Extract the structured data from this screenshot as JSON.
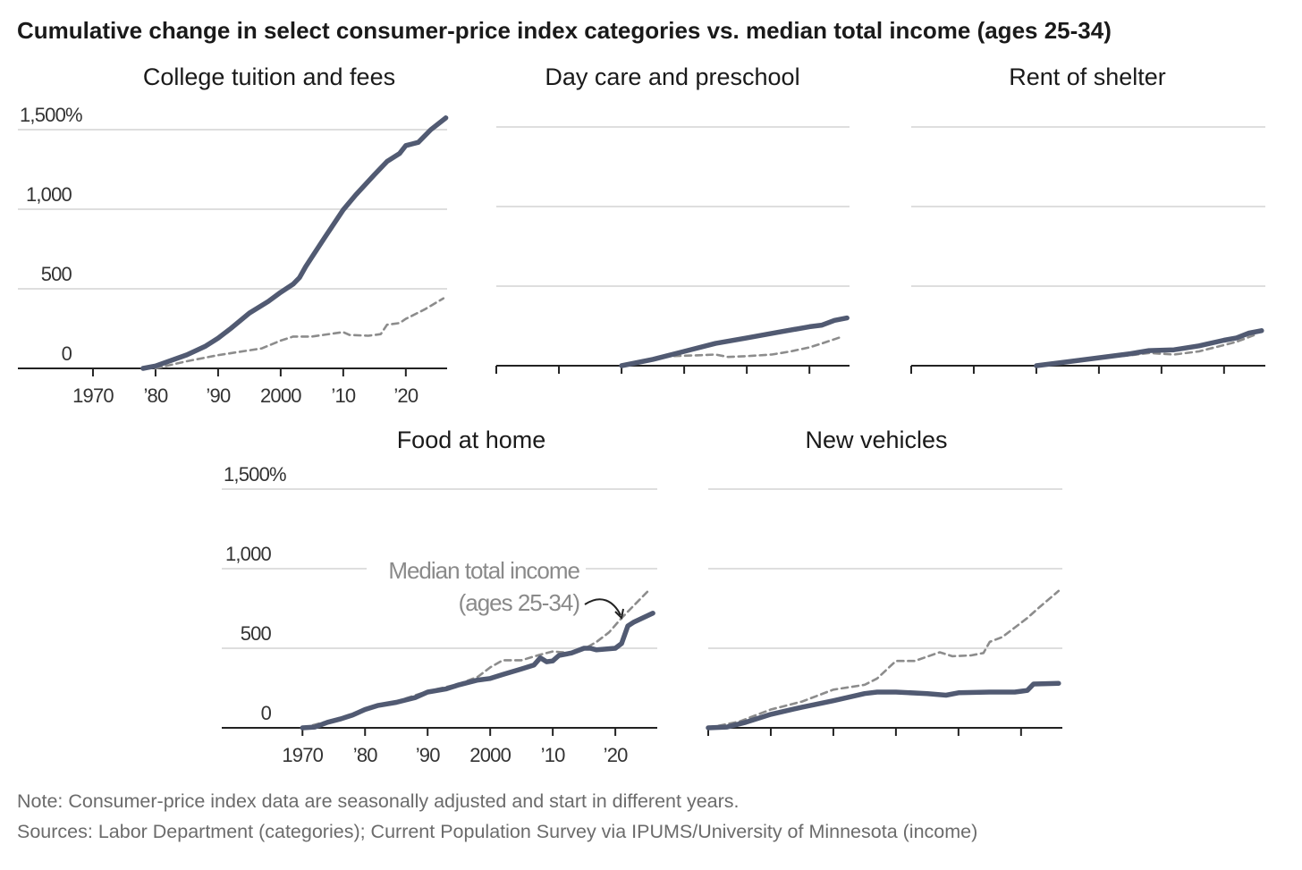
{
  "title": "Cumulative change in select consumer-price index categories vs. median total income (ages 25-34)",
  "colors": {
    "category": "#515a72",
    "income": "#8c8c8c",
    "grid": "#dedede",
    "axis": "#222222"
  },
  "annotation": {
    "line1": "Median total income",
    "line2": "(ages 25-34)"
  },
  "note": "Note: Consumer-price index data are seasonally adjusted and start in different years.",
  "sources": "Sources: Labor Department (categories); Current Population Survey via IPUMS/University of Minnesota (income)",
  "chart_data": [
    {
      "type": "line",
      "title": "College tuition and fees",
      "xlim": [
        1958,
        2026.6
      ],
      "ylim": [
        0,
        1500
      ],
      "yticks": [
        0,
        500,
        1000,
        1500
      ],
      "ytick_labels": [
        "0",
        "500",
        "1,000",
        "1,500%"
      ],
      "xticks": [
        1970,
        1980,
        1990,
        2000,
        2010,
        2020
      ],
      "xtick_labels": [
        "1970",
        "’80",
        "’90",
        "2000",
        "’10",
        "’20"
      ],
      "series": [
        {
          "name": "College tuition and fees CPI",
          "style": "solid",
          "points": [
            [
              1978,
              0
            ],
            [
              1980,
              15
            ],
            [
              1985,
              85
            ],
            [
              1988,
              140
            ],
            [
              1990,
              190
            ],
            [
              1992,
              250
            ],
            [
              1995,
              348
            ],
            [
              1998,
              420
            ],
            [
              2000,
              478
            ],
            [
              2002,
              530
            ],
            [
              2003,
              570
            ],
            [
              2004,
              640
            ],
            [
              2005,
              700
            ],
            [
              2007,
              820
            ],
            [
              2010,
              996
            ],
            [
              2012,
              1090
            ],
            [
              2015,
              1218
            ],
            [
              2017,
              1300
            ],
            [
              2019,
              1350
            ],
            [
              2020,
              1400
            ],
            [
              2021,
              1410
            ],
            [
              2022,
              1420
            ],
            [
              2024,
              1500
            ],
            [
              2026.4,
              1574
            ]
          ]
        },
        {
          "name": "Median total income (ages 25-34)",
          "style": "dashed",
          "points": [
            [
              1980,
              0
            ],
            [
              1985,
              45
            ],
            [
              1990,
              83
            ],
            [
              1997,
              126
            ],
            [
              2000,
              175
            ],
            [
              2002,
              200
            ],
            [
              2005,
              200
            ],
            [
              2010,
              228
            ],
            [
              2011,
              210
            ],
            [
              2014,
              205
            ],
            [
              2016,
              215
            ],
            [
              2017,
              274
            ],
            [
              2019,
              285
            ],
            [
              2020,
              311
            ],
            [
              2023,
              370
            ],
            [
              2026,
              440
            ]
          ]
        }
      ]
    },
    {
      "type": "line",
      "title": "Day care and preschool",
      "xlim": [
        1970,
        2026.4
      ],
      "ylim": [
        0,
        1500
      ],
      "yticks": [
        0,
        500,
        1000,
        1500
      ],
      "ytick_labels": [],
      "xticks": [
        1970,
        1980,
        1990,
        2000,
        2010,
        2020
      ],
      "xtick_labels": [],
      "series": [
        {
          "name": "Day care and preschool CPI",
          "style": "solid",
          "points": [
            [
              1990,
              0
            ],
            [
              1995,
              40
            ],
            [
              2000,
              90
            ],
            [
              2005,
              140
            ],
            [
              2010,
              175
            ],
            [
              2015,
              210
            ],
            [
              2020,
              245
            ],
            [
              2022,
              255
            ],
            [
              2024,
              285
            ],
            [
              2026,
              300
            ]
          ]
        },
        {
          "name": "Median total income (ages 25-34)",
          "style": "dashed",
          "points": [
            [
              1990,
              0
            ],
            [
              1995,
              45
            ],
            [
              1998,
              60
            ],
            [
              2002,
              65
            ],
            [
              2005,
              70
            ],
            [
              2007,
              55
            ],
            [
              2010,
              60
            ],
            [
              2014,
              70
            ],
            [
              2017,
              90
            ],
            [
              2020,
              115
            ],
            [
              2022,
              140
            ],
            [
              2025,
              180
            ]
          ]
        }
      ]
    },
    {
      "type": "line",
      "title": "Rent of shelter",
      "xlim": [
        1970,
        2026.6
      ],
      "ylim": [
        0,
        1500
      ],
      "yticks": [
        0,
        500,
        1000,
        1500
      ],
      "ytick_labels": [],
      "xticks": [
        1970,
        1980,
        1990,
        2000,
        2010,
        2020
      ],
      "xtick_labels": [],
      "series": [
        {
          "name": "Rent of shelter CPI",
          "style": "solid",
          "points": [
            [
              1990,
              0
            ],
            [
              1995,
              25
            ],
            [
              2000,
              50
            ],
            [
              2005,
              75
            ],
            [
              2008,
              95
            ],
            [
              2012,
              100
            ],
            [
              2016,
              125
            ],
            [
              2020,
              160
            ],
            [
              2022,
              175
            ],
            [
              2024,
              205
            ],
            [
              2026,
              220
            ]
          ]
        },
        {
          "name": "Median total income (ages 25-34)",
          "style": "dashed",
          "points": [
            [
              1990,
              0
            ],
            [
              1995,
              30
            ],
            [
              2000,
              50
            ],
            [
              2005,
              65
            ],
            [
              2008,
              80
            ],
            [
              2012,
              70
            ],
            [
              2016,
              90
            ],
            [
              2020,
              130
            ],
            [
              2022,
              150
            ],
            [
              2025,
              195
            ]
          ]
        }
      ]
    },
    {
      "type": "line",
      "title": "Food at home",
      "xlim": [
        1957.1,
        2026.7
      ],
      "ylim": [
        0,
        1500
      ],
      "yticks": [
        0,
        500,
        1000,
        1500
      ],
      "ytick_labels": [
        "0",
        "500",
        "1,000",
        "1,500%"
      ],
      "xticks": [
        1970,
        1980,
        1990,
        2000,
        2010,
        2020
      ],
      "xtick_labels": [
        "1970",
        "’80",
        "’90",
        "2000",
        "’10",
        "’20"
      ],
      "series": [
        {
          "name": "Food at home CPI",
          "style": "solid",
          "points": [
            [
              1970,
              0
            ],
            [
              1972,
              5
            ],
            [
              1974,
              35
            ],
            [
              1976,
              55
            ],
            [
              1978,
              80
            ],
            [
              1980,
              115
            ],
            [
              1982,
              140
            ],
            [
              1985,
              160
            ],
            [
              1988,
              190
            ],
            [
              1990,
              225
            ],
            [
              1993,
              245
            ],
            [
              1995,
              270
            ],
            [
              1998,
              300
            ],
            [
              2000,
              310
            ],
            [
              2002,
              335
            ],
            [
              2005,
              370
            ],
            [
              2007,
              395
            ],
            [
              2008,
              440
            ],
            [
              2009,
              415
            ],
            [
              2010,
              420
            ],
            [
              2011,
              455
            ],
            [
              2013,
              470
            ],
            [
              2015,
              500
            ],
            [
              2016,
              500
            ],
            [
              2017,
              490
            ],
            [
              2020,
              500
            ],
            [
              2021,
              530
            ],
            [
              2022,
              640
            ],
            [
              2023,
              665
            ],
            [
              2026,
              720
            ]
          ]
        },
        {
          "name": "Median total income (ages 25-34)",
          "style": "dashed",
          "points": [
            [
              1970,
              0
            ],
            [
              1975,
              50
            ],
            [
              1980,
              115
            ],
            [
              1985,
              165
            ],
            [
              1990,
              230
            ],
            [
              1995,
              275
            ],
            [
              1998,
              320
            ],
            [
              2000,
              380
            ],
            [
              2002,
              425
            ],
            [
              2005,
              425
            ],
            [
              2008,
              460
            ],
            [
              2010,
              480
            ],
            [
              2013,
              470
            ],
            [
              2015,
              495
            ],
            [
              2017,
              540
            ],
            [
              2019,
              600
            ],
            [
              2021,
              690
            ],
            [
              2023,
              770
            ],
            [
              2025.5,
              870
            ]
          ]
        }
      ]
    },
    {
      "type": "line",
      "title": "New vehicles",
      "xlim": [
        1970,
        2026.6
      ],
      "ylim": [
        0,
        1500
      ],
      "yticks": [
        0,
        500,
        1000,
        1500
      ],
      "ytick_labels": [],
      "xticks": [
        1970,
        1980,
        1990,
        2000,
        2010,
        2020
      ],
      "xtick_labels": [],
      "series": [
        {
          "name": "New vehicles CPI",
          "style": "solid",
          "points": [
            [
              1970,
              0
            ],
            [
              1973,
              5
            ],
            [
              1976,
              35
            ],
            [
              1980,
              85
            ],
            [
              1985,
              130
            ],
            [
              1990,
              170
            ],
            [
              1995,
              215
            ],
            [
              1997,
              225
            ],
            [
              2000,
              225
            ],
            [
              2005,
              215
            ],
            [
              2008,
              205
            ],
            [
              2010,
              220
            ],
            [
              2015,
              225
            ],
            [
              2019,
              225
            ],
            [
              2021,
              235
            ],
            [
              2022,
              275
            ],
            [
              2026,
              280
            ]
          ]
        },
        {
          "name": "Median total income (ages 25-34)",
          "style": "dashed",
          "points": [
            [
              1970,
              0
            ],
            [
              1975,
              40
            ],
            [
              1980,
              115
            ],
            [
              1985,
              165
            ],
            [
              1990,
              240
            ],
            [
              1995,
              270
            ],
            [
              1997,
              310
            ],
            [
              2000,
              420
            ],
            [
              2003,
              420
            ],
            [
              2007,
              475
            ],
            [
              2009,
              450
            ],
            [
              2012,
              455
            ],
            [
              2014,
              470
            ],
            [
              2015,
              540
            ],
            [
              2017,
              570
            ],
            [
              2019,
              630
            ],
            [
              2021,
              690
            ],
            [
              2023,
              760
            ],
            [
              2026,
              860
            ]
          ]
        }
      ]
    }
  ]
}
